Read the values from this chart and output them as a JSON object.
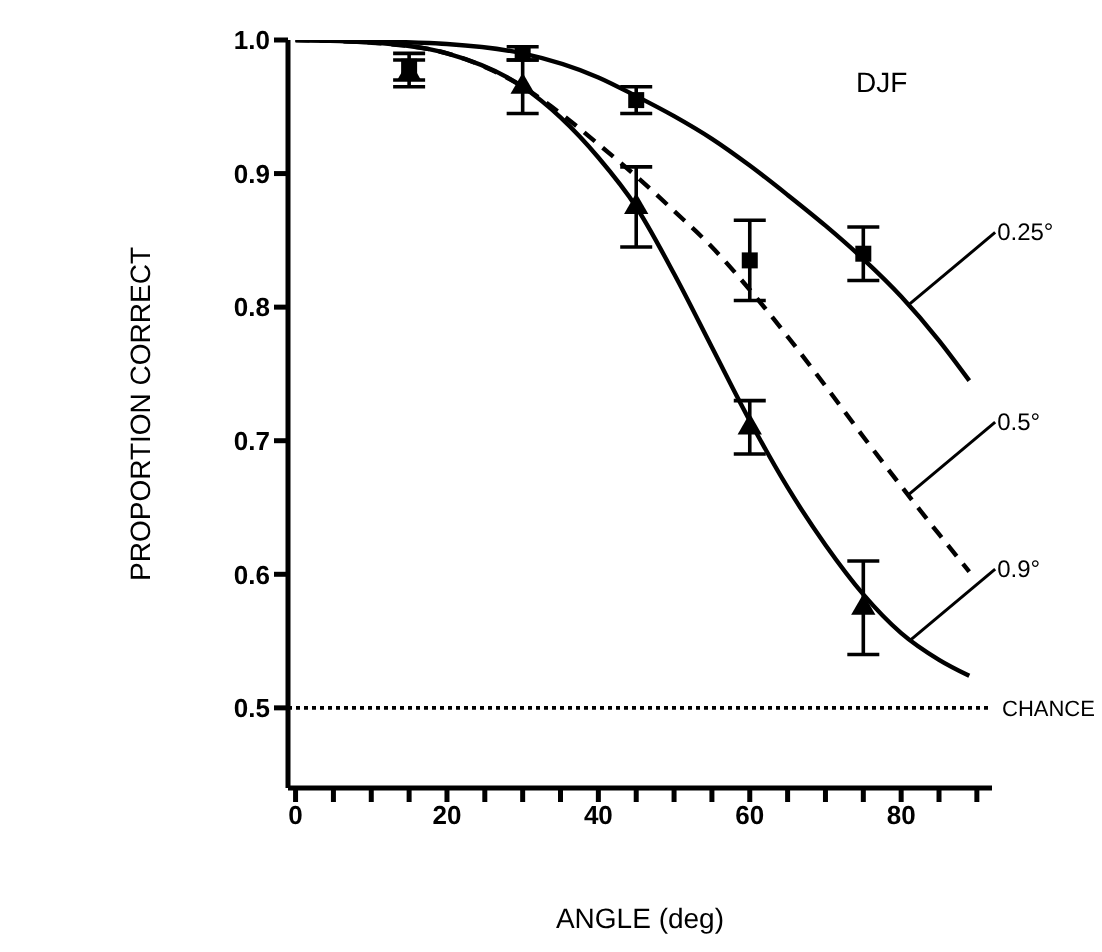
{
  "chart_data": {
    "type": "line",
    "xlabel": "ANGLE (deg)",
    "ylabel": "PROPORTION CORRECT",
    "annotations": [
      "DJF"
    ],
    "xlim": [
      -1,
      92
    ],
    "ylim": [
      0.44,
      1.0
    ],
    "xticks": [
      0,
      {
        "value": 5,
        "label": null
      },
      {
        "value": 10,
        "label": null
      },
      {
        "value": 15,
        "label": null
      },
      20,
      {
        "value": 25,
        "label": null
      },
      {
        "value": 30,
        "label": null
      },
      {
        "value": 35,
        "label": null
      },
      40,
      {
        "value": 45,
        "label": null
      },
      {
        "value": 50,
        "label": null
      },
      {
        "value": 55,
        "label": null
      },
      60,
      {
        "value": 65,
        "label": null
      },
      {
        "value": 70,
        "label": null
      },
      {
        "value": 75,
        "label": null
      },
      80,
      {
        "value": 85,
        "label": null
      },
      {
        "value": 90,
        "label": null
      }
    ],
    "yticks": [
      0.5,
      0.6,
      0.7,
      0.8,
      0.9,
      {
        "value": 1.0,
        "label": "1.0"
      }
    ],
    "grid": false,
    "legend": false,
    "ref_lines": [
      {
        "axis": "y",
        "value": 0.5,
        "label": "CHANCE",
        "line_style": "dotted",
        "color": "#000000"
      }
    ],
    "series": [
      {
        "name": "0.25°",
        "marker": "none",
        "line_style": "solid",
        "color": "#000000",
        "x": [
          0,
          10,
          20,
          30,
          40,
          45,
          50,
          55,
          60,
          65,
          70,
          75,
          80,
          85,
          89
        ],
        "values": [
          1.0,
          0.999,
          0.997,
          0.99,
          0.972,
          0.958,
          0.943,
          0.926,
          0.906,
          0.884,
          0.861,
          0.836,
          0.808,
          0.775,
          0.745
        ]
      },
      {
        "name": "0.5°",
        "marker": "none",
        "line_style": "dashed",
        "color": "#000000",
        "x": [
          0,
          10,
          20,
          30,
          35,
          40,
          45,
          50,
          55,
          60,
          65,
          70,
          75,
          80,
          85,
          89
        ],
        "values": [
          1.0,
          0.998,
          0.99,
          0.965,
          0.945,
          0.922,
          0.898,
          0.872,
          0.845,
          0.813,
          0.778,
          0.741,
          0.703,
          0.666,
          0.63,
          0.602
        ]
      },
      {
        "name": "0.9°",
        "marker": "none",
        "line_style": "solid",
        "color": "#000000",
        "x": [
          0,
          10,
          20,
          30,
          35,
          40,
          45,
          50,
          55,
          60,
          65,
          70,
          75,
          80,
          85,
          89
        ],
        "values": [
          1.0,
          0.998,
          0.99,
          0.965,
          0.942,
          0.912,
          0.875,
          0.825,
          0.77,
          0.715,
          0.665,
          0.622,
          0.585,
          0.556,
          0.536,
          0.524
        ]
      },
      {
        "type": "scatter",
        "marker": "square",
        "color": "#000000",
        "x": [
          15,
          30,
          45,
          60,
          75
        ],
        "values": [
          0.98,
          0.99,
          0.955,
          0.835,
          0.84
        ],
        "errors": [
          0.01,
          0.005,
          0.01,
          0.03,
          0.02
        ]
      },
      {
        "type": "scatter",
        "marker": "triangle",
        "color": "#000000",
        "x": [
          15,
          30,
          45,
          60,
          75
        ],
        "values": [
          0.975,
          0.965,
          0.875,
          0.71,
          0.575
        ],
        "errors": [
          0.01,
          0.02,
          0.03,
          0.02,
          0.035
        ]
      }
    ]
  }
}
